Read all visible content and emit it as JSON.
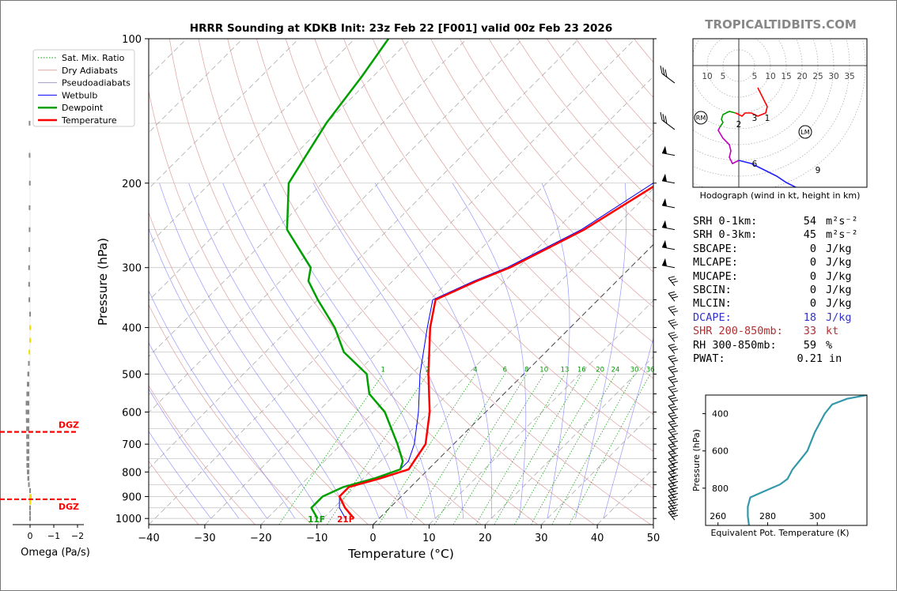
{
  "title": "HRRR Sounding at KDKB Init: 23z Feb 22 [F001] valid 00z Feb 23 2026",
  "brand": "TROPICALTIDBITS.COM",
  "colors": {
    "temperature": "#ff0000",
    "dewpoint": "#00a000",
    "wetbulb": "#0000ff",
    "dry": "#e0a0a0",
    "pseudo": "#8080ff",
    "mix": "#009900",
    "dgz": "#ff0000",
    "dcape": "#3333cc",
    "shr": "#b03030"
  },
  "legend": [
    "Sat. Mix. Ratio",
    "Dry Adiabats",
    "Pseudoadiabats",
    "Wetbulb",
    "Dewpoint",
    "Temperature"
  ],
  "skewt": {
    "xlabel": "Temperature (°C)",
    "ylabel": "Pressure (hPa)",
    "xlim": [
      -40,
      50
    ],
    "ylim": [
      1030,
      100
    ],
    "xticks": [
      -40,
      -30,
      -20,
      -10,
      0,
      10,
      20,
      30,
      40,
      50
    ],
    "yticks": [
      100,
      200,
      300,
      400,
      500,
      600,
      700,
      800,
      900,
      1000
    ],
    "mixing_ratio_labels": [
      "1",
      "2",
      "4",
      "6",
      "8",
      "10",
      "13",
      "16",
      "20",
      "24",
      "30",
      "36"
    ],
    "surface_dewpoint_label": "11F",
    "surface_temp_label": "21F"
  },
  "omega": {
    "xlabel": "Omega (Pa/s)",
    "xticks": [
      "0",
      "−1",
      "−2"
    ],
    "dgz_label": "DGZ"
  },
  "hodograph": {
    "caption": "Hodograph (wind in kt, height in km)",
    "ring_labels": [
      "10",
      "5",
      "5",
      "10",
      "15",
      "20",
      "25",
      "30",
      "35"
    ],
    "markers": {
      "rm": "RM",
      "lm": "LM"
    },
    "height_labels": [
      "1",
      "2",
      "3",
      "6",
      "9"
    ]
  },
  "stats": [
    {
      "label": "SRH 0-1km:",
      "value": "54",
      "unit": "m²s⁻²",
      "color": "#000000"
    },
    {
      "label": "SRH 0-3km:",
      "value": "45",
      "unit": "m²s⁻²",
      "color": "#000000"
    },
    {
      "label": "SBCAPE:",
      "value": "0",
      "unit": "J/kg",
      "color": "#000000"
    },
    {
      "label": "MLCAPE:",
      "value": "0",
      "unit": "J/kg",
      "color": "#000000"
    },
    {
      "label": "MUCAPE:",
      "value": "0",
      "unit": "J/kg",
      "color": "#000000"
    },
    {
      "label": "SBCIN:",
      "value": "0",
      "unit": "J/kg",
      "color": "#000000"
    },
    {
      "label": "MLCIN:",
      "value": "0",
      "unit": "J/kg",
      "color": "#000000"
    },
    {
      "label": "DCAPE:",
      "value": "18",
      "unit": "J/kg",
      "color": "#3333cc"
    },
    {
      "label": "SHR 200-850mb:",
      "value": "33",
      "unit": "kt",
      "color": "#b03030"
    },
    {
      "label": "RH 300-850mb:",
      "value": "59",
      "unit": "%",
      "color": "#000000"
    },
    {
      "label": "PWAT:",
      "value": "0.21",
      "unit": "in",
      "color": "#000000"
    }
  ],
  "chart_data": [
    {
      "type": "line",
      "name": "skew-t",
      "series": [
        {
          "name": "Temperature",
          "p": [
            1000,
            950,
            900,
            860,
            825,
            790,
            760,
            700,
            600,
            500,
            400,
            350,
            320,
            300,
            250,
            200,
            150,
            120,
            100
          ],
          "t": [
            -4.5,
            -8,
            -11,
            -11,
            -7,
            -3.5,
            -4,
            -5,
            -10,
            -17,
            -25,
            -29,
            -25,
            -21.5,
            -15,
            -10,
            -18,
            -24,
            -30
          ]
        },
        {
          "name": "Dewpoint",
          "p": [
            1000,
            950,
            900,
            860,
            825,
            790,
            760,
            700,
            600,
            550,
            500,
            450,
            400,
            350,
            320,
            300,
            250,
            200,
            150,
            120,
            100
          ],
          "t": [
            -11,
            -14,
            -14,
            -12,
            -8,
            -5,
            -6,
            -10,
            -18,
            -24,
            -28,
            -36,
            -42,
            -50,
            -55,
            -57,
            -68,
            -76,
            -80,
            -82,
            -84
          ]
        },
        {
          "name": "Wetbulb",
          "p": [
            1000,
            950,
            900,
            860,
            825,
            790,
            760,
            700,
            600,
            500,
            400,
            350,
            320,
            300,
            250,
            200,
            150,
            120,
            100
          ],
          "t": [
            -6,
            -9,
            -11,
            -11,
            -7.5,
            -5,
            -5,
            -7,
            -12,
            -18.5,
            -25.5,
            -29.5,
            -25.5,
            -22,
            -15.5,
            -11,
            -18.5,
            -24.5,
            -30.5
          ]
        }
      ]
    },
    {
      "type": "line",
      "name": "equivalent-potential-temperature",
      "xlabel": "Equivalent Pot. Temperature (K)",
      "ylabel": "Pressure (hPa)",
      "xticks": [
        260,
        280,
        300
      ],
      "yticks": [
        400,
        600,
        800
      ],
      "xlim": [
        255,
        320
      ],
      "ylim": [
        1000,
        300
      ],
      "x": [
        272.5,
        272,
        272,
        273,
        278,
        285,
        288,
        290,
        293,
        296,
        299,
        301,
        303,
        306,
        312,
        320
      ],
      "y": [
        1000,
        950,
        900,
        850,
        820,
        780,
        750,
        700,
        650,
        600,
        500,
        450,
        400,
        350,
        320,
        300
      ]
    },
    {
      "type": "scatter",
      "name": "omega-profile",
      "p": [
        1000,
        975,
        950,
        925,
        900,
        875,
        850,
        825,
        800,
        775,
        750,
        725,
        700,
        675,
        650,
        625,
        600,
        575,
        550,
        525,
        500,
        475,
        450,
        425,
        400,
        375,
        350,
        325,
        300,
        275,
        250,
        225,
        200,
        175,
        150
      ],
      "omega": [
        0,
        0,
        -0.02,
        -0.08,
        -0.1,
        -0.06,
        0.05,
        0.08,
        0.1,
        0.12,
        0.12,
        0.12,
        0.12,
        0.13,
        0.13,
        0.14,
        0.15,
        0.15,
        0.12,
        0.1,
        0.08,
        0.05,
        0.03,
        0,
        -0.02,
        0,
        0.03,
        0.04,
        0.04,
        0.03,
        0.02,
        0.02,
        0.01,
        0.02,
        0.02
      ]
    },
    {
      "type": "line",
      "name": "hodograph",
      "u": [
        -2,
        -6,
        0.5,
        3,
        6,
        12,
        19,
        24,
        28
      ],
      "v": [
        -17.5,
        -16,
        -17,
        -19,
        -27,
        -35,
        -39,
        -42,
        -40
      ],
      "segments": [
        {
          "color": "#ff0000",
          "from": 0,
          "to": 4
        },
        {
          "color": "#00a000",
          "from": 3,
          "to": 6
        },
        {
          "color": "#c000c0",
          "from": 5,
          "to": 7
        },
        {
          "color": "#2020ff",
          "from": 6,
          "to": 9
        }
      ],
      "u_path": [
        6,
        7,
        8,
        9,
        8.5,
        6,
        4,
        2,
        1,
        -1,
        -3,
        -5,
        -5.5,
        -5,
        -6,
        -6.5,
        -5,
        -3,
        -2.5,
        -3,
        -2,
        0,
        4,
        8,
        12,
        15,
        19,
        22,
        24,
        27,
        30,
        33
      ],
      "v_path": [
        -7,
        -9,
        -11,
        -13,
        -15,
        -16,
        -15,
        -15,
        -16,
        -15,
        -14.5,
        -15.5,
        -17,
        -18,
        -19.5,
        -20.5,
        -23,
        -25,
        -27,
        -29,
        -31,
        -30,
        -31,
        -33,
        -35,
        -37,
        -39,
        -40,
        -40.5,
        -41,
        -42,
        -40
      ],
      "rm": [
        -12,
        -16.5
      ],
      "lm": [
        21,
        -21
      ]
    }
  ]
}
